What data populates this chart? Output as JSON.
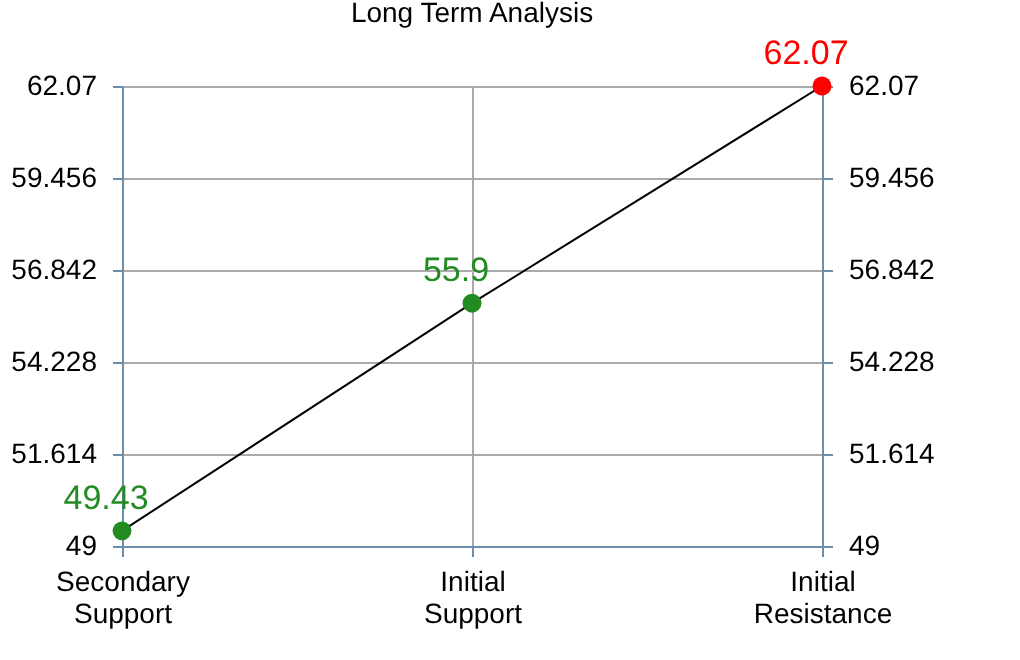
{
  "chart_data": {
    "type": "line",
    "title": "Long Term Analysis",
    "categories": [
      "Secondary Support",
      "Initial Support",
      "Initial Resistance"
    ],
    "series": [
      {
        "color": "#000000",
        "colors": [
          "#228b22",
          "#228b22",
          "#ff0000"
        ],
        "values": [
          49.43,
          55.9,
          62.07
        ]
      }
    ],
    "data_labels": true,
    "marker": "circle",
    "line_style": "solid",
    "grid": true,
    "ylim": [
      49,
      62.07
    ],
    "yticks": [
      49,
      51.614,
      54.228,
      56.842,
      59.456,
      62.07
    ],
    "y2lim": [
      49,
      62.07
    ],
    "y2ticks": [
      49,
      51.614,
      54.228,
      56.842,
      59.456,
      62.07
    ]
  }
}
